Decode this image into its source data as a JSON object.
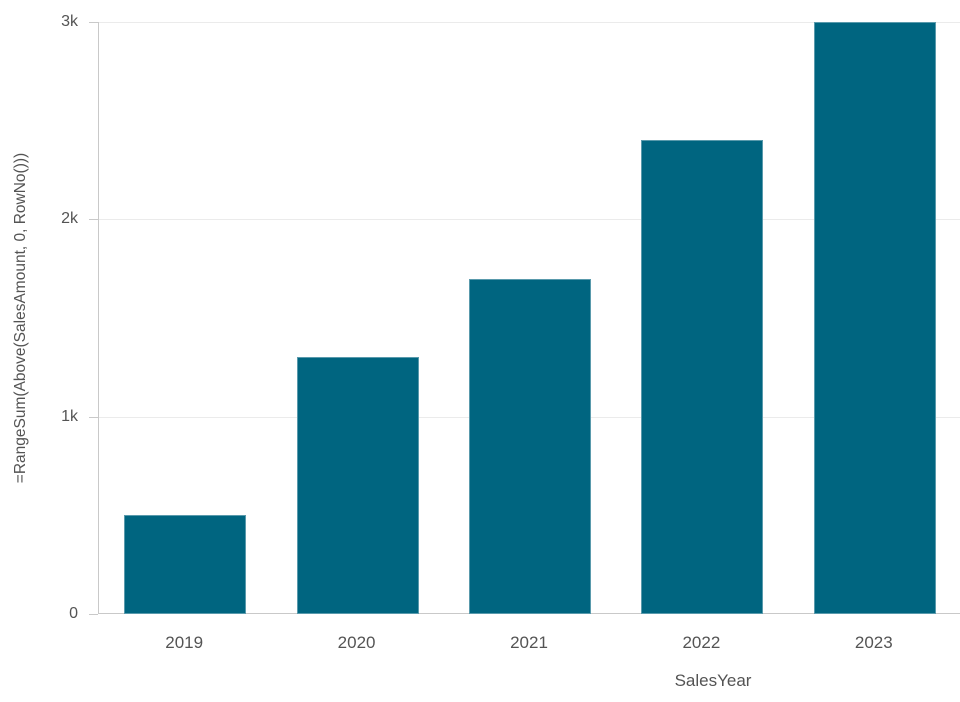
{
  "chart_data": {
    "type": "bar",
    "categories": [
      "2019",
      "2020",
      "2021",
      "2022",
      "2023"
    ],
    "values": [
      500,
      1300,
      1700,
      2400,
      3000
    ],
    "title": "",
    "xlabel": "SalesYear",
    "ylabel": "=RangeSum(Above(SalesAmount, 0, RowNo()))",
    "ylim": [
      0,
      3000
    ],
    "yticks": [
      0,
      1000,
      2000,
      3000
    ],
    "ytick_labels": [
      "0",
      "1k",
      "2k",
      "3k"
    ],
    "grid": true,
    "legend": false,
    "bar_color": "#006580"
  },
  "colors": {
    "bar": "#006580",
    "grid": "#ebebeb",
    "axis": "#c9c9c9",
    "text": "#545454",
    "background": "#ffffff"
  }
}
